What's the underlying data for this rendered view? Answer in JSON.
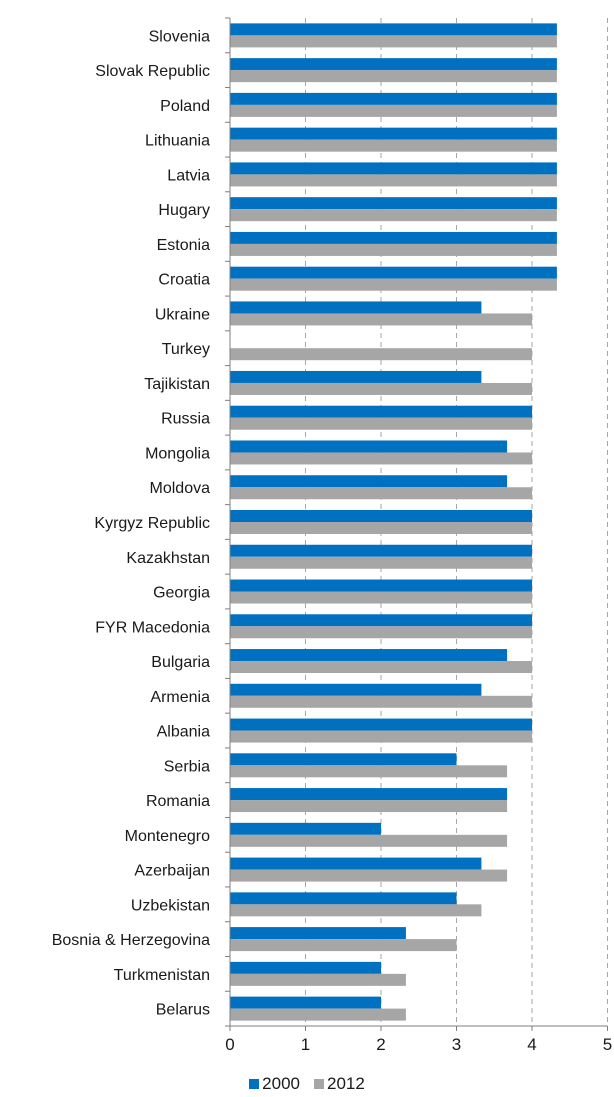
{
  "chart_data": {
    "type": "bar",
    "orientation": "horizontal",
    "categories": [
      "Slovenia",
      "Slovak Republic",
      "Poland",
      "Lithuania",
      "Latvia",
      "Hugary",
      "Estonia",
      "Croatia",
      "Ukraine",
      "Turkey",
      "Tajikistan",
      "Russia",
      "Mongolia",
      "Moldova",
      "Kyrgyz Republic",
      "Kazakhstan",
      "Georgia",
      "FYR Macedonia",
      "Bulgaria",
      "Armenia",
      "Albania",
      "Serbia",
      "Romania",
      "Montenegro",
      "Azerbaijan",
      "Uzbekistan",
      "Bosnia & Herzegovina",
      "Turkmenistan",
      "Belarus"
    ],
    "series": [
      {
        "name": "2000",
        "color": "#0070c0",
        "values": [
          4.33,
          4.33,
          4.33,
          4.33,
          4.33,
          4.33,
          4.33,
          4.33,
          3.33,
          null,
          3.33,
          4.0,
          3.67,
          3.67,
          4.0,
          4.0,
          4.0,
          4.0,
          3.67,
          3.33,
          4.0,
          3.0,
          3.67,
          2.0,
          3.33,
          3.0,
          2.33,
          2.0,
          2.0
        ]
      },
      {
        "name": "2012",
        "color": "#a6a6a6",
        "values": [
          4.33,
          4.33,
          4.33,
          4.33,
          4.33,
          4.33,
          4.33,
          4.33,
          4.0,
          4.0,
          4.0,
          4.0,
          4.0,
          4.0,
          4.0,
          4.0,
          4.0,
          4.0,
          4.0,
          4.0,
          4.0,
          3.67,
          3.67,
          3.67,
          3.67,
          3.33,
          3.0,
          2.33,
          2.33
        ]
      }
    ],
    "xlim": [
      0,
      5
    ],
    "xticks": [
      "0",
      "1",
      "2",
      "3",
      "4",
      "5"
    ],
    "grid": "vertical dashed",
    "legend": "bottom-center"
  }
}
